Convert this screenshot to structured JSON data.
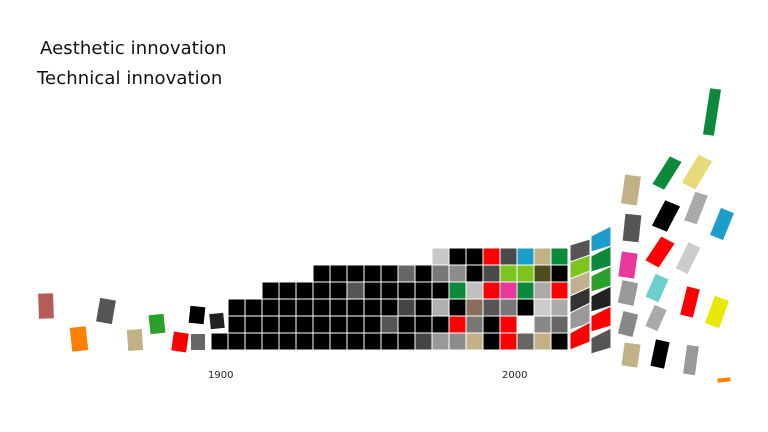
{
  "headings": {
    "aesthetic": "Aesthetic innovation",
    "technical": "Technical innovation"
  },
  "timeline": {
    "year_1900": "1900",
    "year_2000": "2000"
  },
  "colors": {
    "black": "#000000",
    "dark_gray": "#4a4a4a",
    "mid_gray": "#8c8c8c",
    "light_gray": "#c8c8c8",
    "red": "#ff0000",
    "green": "#0a8a3a",
    "light_green": "#7dc51e",
    "teal": "#1b9ec9",
    "tan": "#c2b186",
    "pink": "#e8389a",
    "orange": "#ff7f00",
    "dusty_red": "#b65a5a",
    "olive": "#4e4c1e",
    "yellow": "#e8e800",
    "aqua": "#6dcfcb"
  }
}
